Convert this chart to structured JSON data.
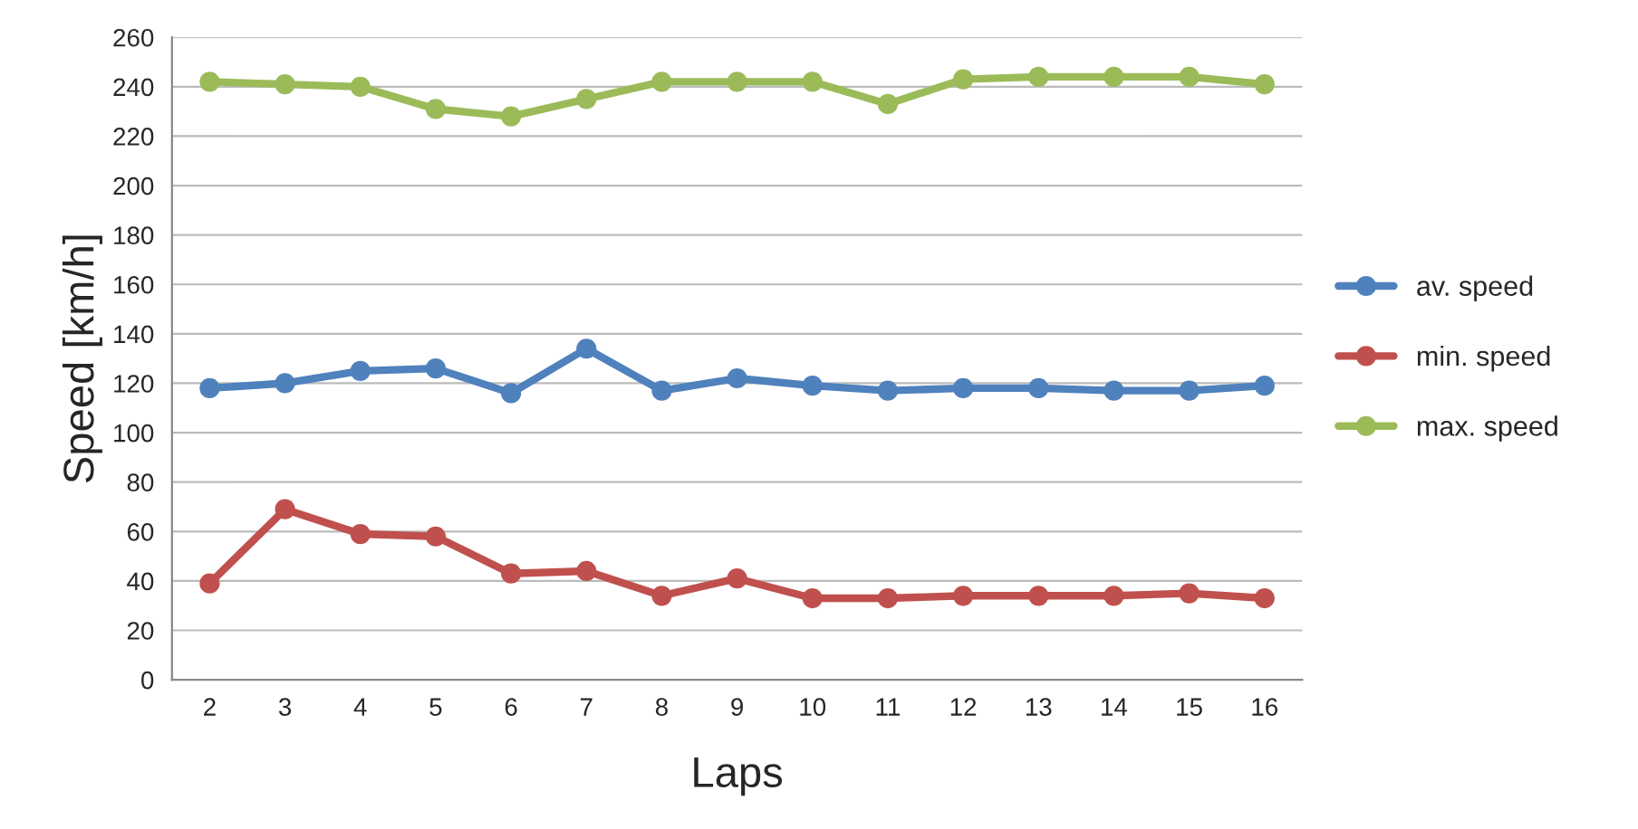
{
  "chart_data": {
    "type": "line",
    "xlabel": "Laps",
    "ylabel": "Speed [km/h]",
    "categories": [
      "2",
      "3",
      "4",
      "5",
      "6",
      "7",
      "8",
      "9",
      "10",
      "11",
      "12",
      "13",
      "14",
      "15",
      "16"
    ],
    "series": [
      {
        "name": "av. speed",
        "color": "#4f81bd",
        "values": [
          118,
          120,
          125,
          126,
          116,
          134,
          117,
          122,
          119,
          117,
          118,
          118,
          117,
          117,
          119
        ]
      },
      {
        "name": "min. speed",
        "color": "#c0504d",
        "values": [
          39,
          69,
          59,
          58,
          43,
          44,
          34,
          41,
          33,
          33,
          34,
          34,
          34,
          35,
          33
        ]
      },
      {
        "name": "max. speed",
        "color": "#9bbb59",
        "values": [
          242,
          241,
          240,
          231,
          228,
          235,
          242,
          242,
          242,
          233,
          243,
          244,
          244,
          244,
          241
        ]
      }
    ],
    "ylim": [
      0,
      260
    ],
    "yticks": [
      0,
      20,
      40,
      60,
      80,
      100,
      120,
      140,
      160,
      180,
      200,
      220,
      240,
      260
    ],
    "grid": "y",
    "legend": "right",
    "marker": "circle",
    "line_style": "solid"
  }
}
